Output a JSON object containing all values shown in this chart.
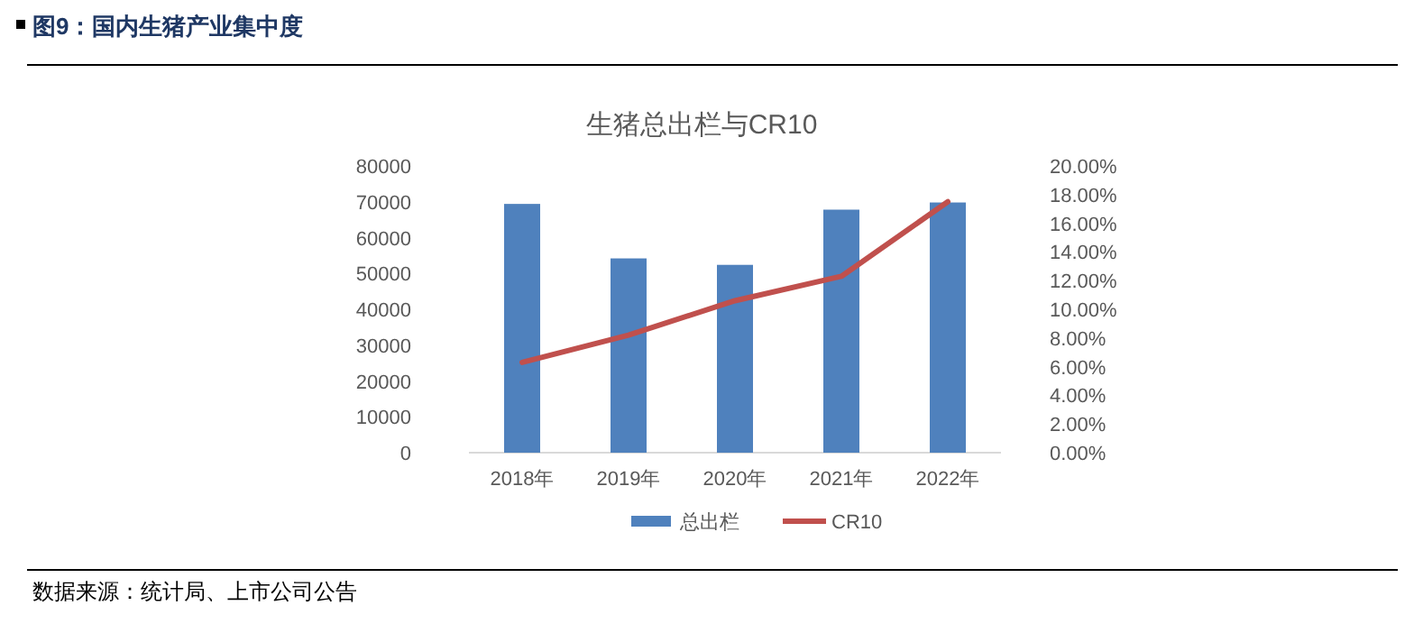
{
  "chart_data": {
    "type": "bar",
    "title": "图9：国内生猪产业集中度",
    "subtitle": "生猪总出栏与CR10",
    "categories": [
      "2018年",
      "2019年",
      "2020年",
      "2021年",
      "2022年"
    ],
    "series": [
      {
        "name": "总出栏",
        "color": "#4f81bd",
        "values": [
          69400,
          54200,
          52400,
          67800,
          69800
        ]
      },
      {
        "name": "CR10",
        "type": "line",
        "axis": "y2",
        "color": "#c0504d",
        "values": [
          6.3,
          8.2,
          10.6,
          12.3,
          17.5
        ]
      }
    ],
    "ylim": [
      0,
      80000
    ],
    "yticks": [
      0,
      10000,
      20000,
      30000,
      40000,
      50000,
      60000,
      70000,
      80000
    ],
    "y2lim": [
      0,
      20
    ],
    "y2ticks": [
      {
        "value": 0,
        "label": "0.00%"
      },
      {
        "value": 2,
        "label": "2.00%"
      },
      {
        "value": 4,
        "label": "4.00%"
      },
      {
        "value": 6,
        "label": "6.00%"
      },
      {
        "value": 8,
        "label": "8.00%"
      },
      {
        "value": 10,
        "label": "10.00%"
      },
      {
        "value": 12,
        "label": "12.00%"
      },
      {
        "value": 14,
        "label": "14.00%"
      },
      {
        "value": 16,
        "label": "16.00%"
      },
      {
        "value": 18,
        "label": "18.00%"
      },
      {
        "value": 20,
        "label": "20.00%"
      }
    ],
    "grid": false,
    "legend": "bottom",
    "annotations": [
      "数据来源：统计局、上市公司公告"
    ]
  }
}
